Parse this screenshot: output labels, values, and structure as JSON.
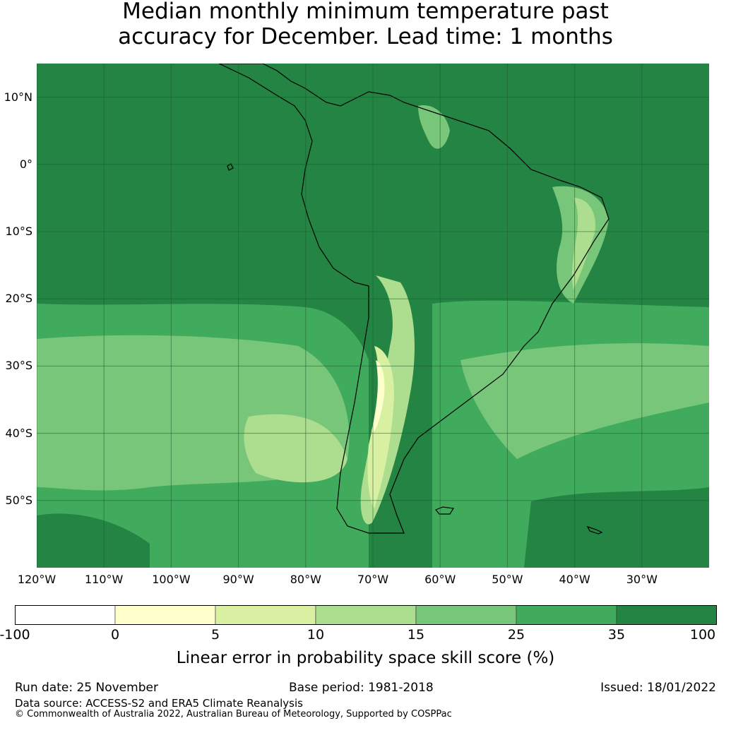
{
  "title_line1": "Median monthly minimum temperature past",
  "title_line2": "accuracy for December. Lead time: 1 months",
  "map": {
    "extent": {
      "lon_min": -120,
      "lon_max": -20,
      "lat_min": -60,
      "lat_max": 15
    },
    "lat_labels": [
      {
        "value": 10,
        "text": "10°N"
      },
      {
        "value": 0,
        "text": "0°"
      },
      {
        "value": -10,
        "text": "10°S"
      },
      {
        "value": -20,
        "text": "20°S"
      },
      {
        "value": -30,
        "text": "30°S"
      },
      {
        "value": -40,
        "text": "40°S"
      },
      {
        "value": -50,
        "text": "50°S"
      }
    ],
    "lon_labels": [
      {
        "value": -120,
        "text": "120°W"
      },
      {
        "value": -110,
        "text": "110°W"
      },
      {
        "value": -100,
        "text": "100°W"
      },
      {
        "value": -90,
        "text": "90°W"
      },
      {
        "value": -80,
        "text": "80°W"
      },
      {
        "value": -70,
        "text": "70°W"
      },
      {
        "value": -60,
        "text": "60°W"
      },
      {
        "value": -50,
        "text": "50°W"
      },
      {
        "value": -40,
        "text": "40°W"
      },
      {
        "value": -30,
        "text": "30°W"
      }
    ]
  },
  "colorbar": {
    "ticks": [
      "-100",
      "0",
      "5",
      "10",
      "15",
      "25",
      "35",
      "100"
    ],
    "colors": [
      "#ffffff",
      "#ffffcc",
      "#d9f0a3",
      "#addd8e",
      "#78c679",
      "#41ab5d",
      "#238443"
    ],
    "label": "Linear error in probability space skill score (%)"
  },
  "footer": {
    "run_date": "Run date: 25 November",
    "base_period": "Base period: 1981-2018",
    "issued": "Issued: 18/01/2022",
    "data_source": "Data source: ACCESS-S2 and ERA5 Climate Reanalysis",
    "copyright": "© Commonwealth of Australia 2022, Australian Bureau of Meteorology, Supported by COSPPac"
  }
}
